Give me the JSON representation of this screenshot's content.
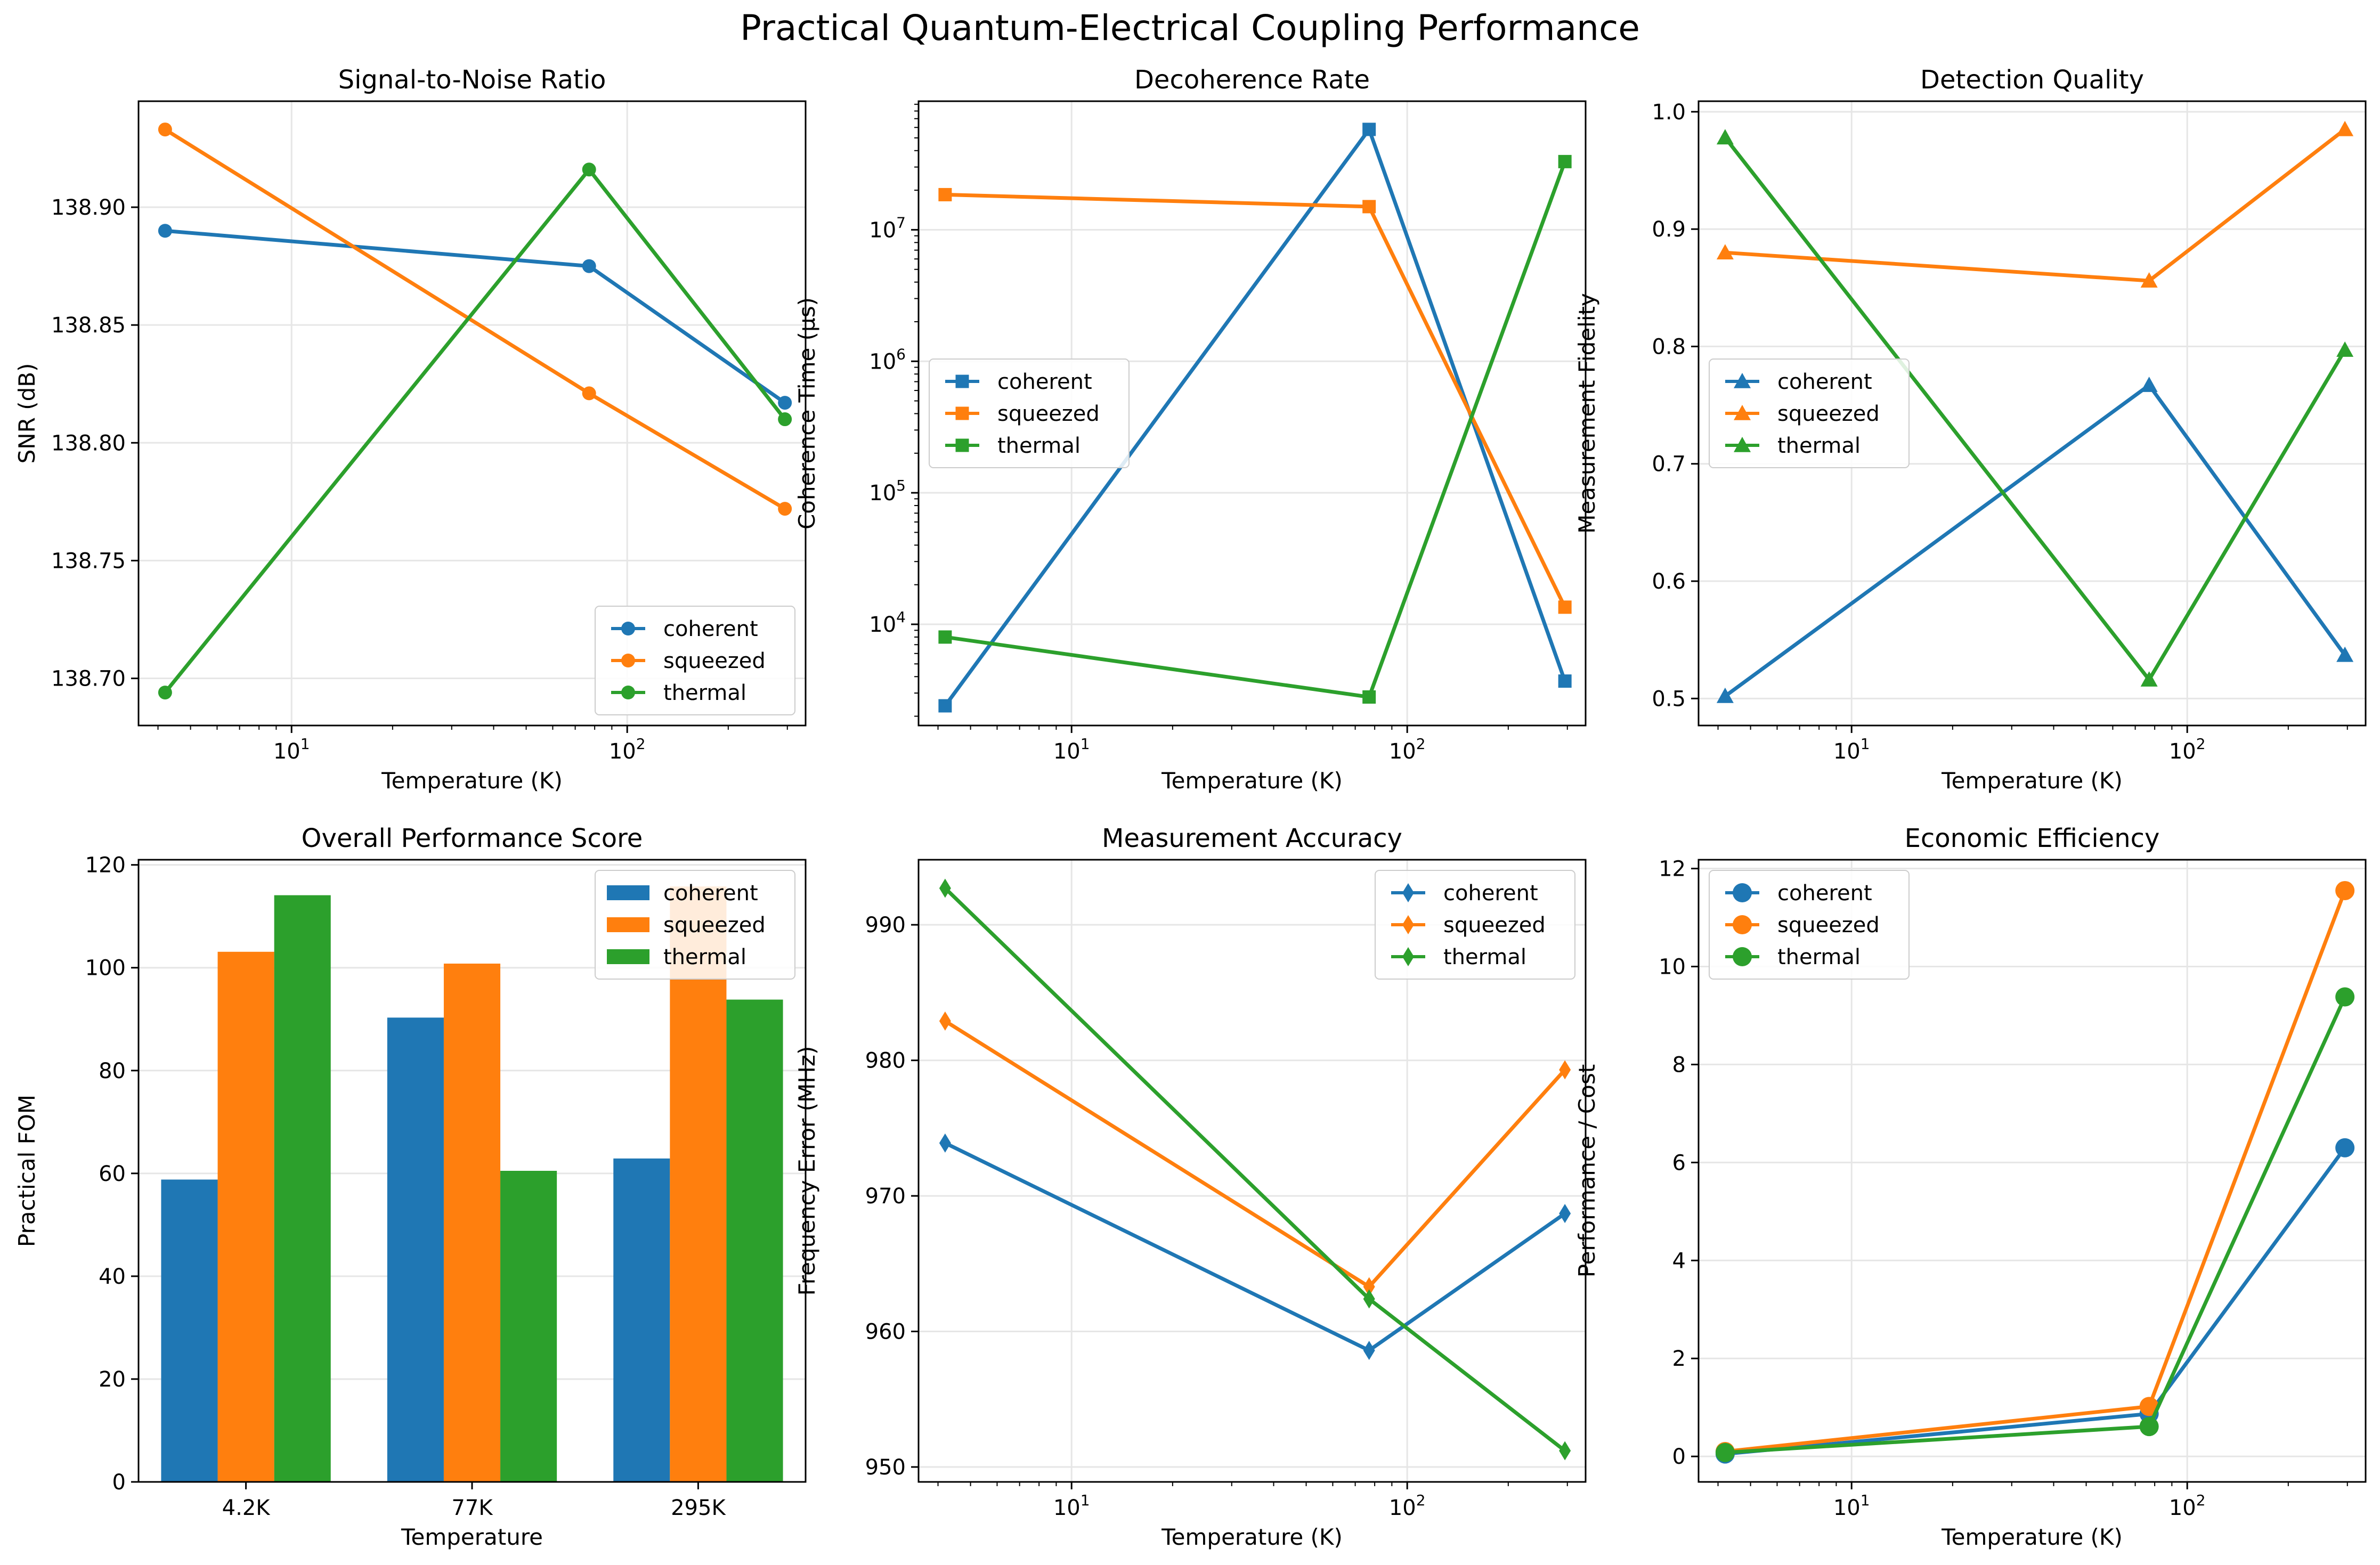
{
  "figure": {
    "title": "Practical Quantum-Electrical Coupling Performance"
  },
  "colors": {
    "coherent": "#1f77b4",
    "squeezed": "#ff7f0e",
    "thermal": "#2ca02c",
    "grid": "#e6e6e6",
    "axis": "#000000"
  },
  "chart_data": [
    {
      "type": "line",
      "title": "Signal-to-Noise Ratio",
      "xlabel": "Temperature (K)",
      "ylabel": "SNR (dB)",
      "xscale": "log",
      "xlim": [
        3.5,
        340
      ],
      "xticks": [
        10,
        100
      ],
      "xtick_labels": [
        "10^1",
        "10^2"
      ],
      "ylim": [
        138.68,
        138.945
      ],
      "yticks": [
        138.7,
        138.75,
        138.8,
        138.85,
        138.9
      ],
      "ytick_labels": [
        "138.70",
        "138.75",
        "138.80",
        "138.85",
        "138.90"
      ],
      "marker": "circle",
      "grid": true,
      "legend": "lower right",
      "x": [
        4.2,
        77,
        295
      ],
      "series": [
        {
          "name": "coherent",
          "values": [
            138.89,
            138.875,
            138.817
          ]
        },
        {
          "name": "squeezed",
          "values": [
            138.933,
            138.821,
            138.772
          ]
        },
        {
          "name": "thermal",
          "values": [
            138.694,
            138.916,
            138.81
          ]
        }
      ]
    },
    {
      "type": "line",
      "title": "Decoherence Rate",
      "xlabel": "Temperature (K)",
      "ylabel": "Coherence Time (μs)",
      "xscale": "log",
      "xlim": [
        3.5,
        340
      ],
      "xticks": [
        10,
        100
      ],
      "xtick_labels": [
        "10^1",
        "10^2"
      ],
      "yscale": "log",
      "ylim": [
        1700,
        95000000
      ],
      "yticks": [
        10000,
        100000,
        1000000,
        10000000
      ],
      "ytick_labels": [
        "10^4",
        "10^5",
        "10^6",
        "10^7"
      ],
      "marker": "square",
      "grid": true,
      "legend": "center left",
      "x": [
        4.2,
        77,
        295
      ],
      "series": [
        {
          "name": "coherent",
          "values": [
            2400,
            58000000,
            3700
          ]
        },
        {
          "name": "squeezed",
          "values": [
            18500000,
            15000000,
            13500
          ]
        },
        {
          "name": "thermal",
          "values": [
            8000,
            2800,
            33000000
          ]
        }
      ]
    },
    {
      "type": "line",
      "title": "Detection Quality",
      "xlabel": "Temperature (K)",
      "ylabel": "Measurement Fidelity",
      "xscale": "log",
      "xlim": [
        3.5,
        340
      ],
      "xticks": [
        10,
        100
      ],
      "xtick_labels": [
        "10^1",
        "10^2"
      ],
      "ylim": [
        0.477,
        1.009
      ],
      "yticks": [
        0.5,
        0.6,
        0.7,
        0.8,
        0.9,
        1.0
      ],
      "ytick_labels": [
        "0.5",
        "0.6",
        "0.7",
        "0.8",
        "0.9",
        "1.0"
      ],
      "marker": "triangle",
      "grid": true,
      "legend": "center left",
      "x": [
        4.2,
        77,
        295
      ],
      "series": [
        {
          "name": "coherent",
          "values": [
            0.502,
            0.767,
            0.537
          ]
        },
        {
          "name": "squeezed",
          "values": [
            0.88,
            0.856,
            0.985
          ]
        },
        {
          "name": "thermal",
          "values": [
            0.978,
            0.516,
            0.797
          ]
        }
      ]
    },
    {
      "type": "bar",
      "title": "Overall Performance Score",
      "xlabel": "Temperature",
      "ylabel": "Practical FOM",
      "categories": [
        "4.2K",
        "77K",
        "295K"
      ],
      "ylim": [
        0,
        121
      ],
      "yticks": [
        0,
        20,
        40,
        60,
        80,
        100,
        120
      ],
      "ytick_labels": [
        "0",
        "20",
        "40",
        "60",
        "80",
        "100",
        "120"
      ],
      "grid": true,
      "legend": "upper right",
      "series": [
        {
          "name": "coherent",
          "values": [
            58.8,
            90.3,
            62.9
          ]
        },
        {
          "name": "squeezed",
          "values": [
            103.1,
            100.8,
            115.8
          ]
        },
        {
          "name": "thermal",
          "values": [
            114.1,
            60.5,
            93.8
          ]
        }
      ]
    },
    {
      "type": "line",
      "title": "Measurement Accuracy",
      "xlabel": "Temperature (K)",
      "ylabel": "Frequency Error (MHz)",
      "xscale": "log",
      "xlim": [
        3.5,
        340
      ],
      "xticks": [
        10,
        100
      ],
      "xtick_labels": [
        "10^1",
        "10^2"
      ],
      "ylim": [
        948.9,
        994.8
      ],
      "yticks": [
        950,
        960,
        970,
        980,
        990
      ],
      "ytick_labels": [
        "950",
        "960",
        "970",
        "980",
        "990"
      ],
      "marker": "diamond",
      "grid": true,
      "legend": "upper right",
      "x": [
        4.2,
        77,
        295
      ],
      "series": [
        {
          "name": "coherent",
          "values": [
            973.9,
            958.6,
            968.7
          ]
        },
        {
          "name": "squeezed",
          "values": [
            982.9,
            963.3,
            979.3
          ]
        },
        {
          "name": "thermal",
          "values": [
            992.7,
            962.4,
            951.2
          ]
        }
      ]
    },
    {
      "type": "line",
      "title": "Economic Efficiency",
      "xlabel": "Temperature (K)",
      "ylabel": "Performance / Cost",
      "xscale": "log",
      "xlim": [
        3.5,
        340
      ],
      "xticks": [
        10,
        100
      ],
      "xtick_labels": [
        "10^1",
        "10^2"
      ],
      "ylim": [
        -0.52,
        12.18
      ],
      "yticks": [
        0,
        2,
        4,
        6,
        8,
        10,
        12
      ],
      "ytick_labels": [
        "0",
        "2",
        "4",
        "6",
        "8",
        "10",
        "12"
      ],
      "marker": "circle-large",
      "grid": true,
      "legend": "upper left",
      "x": [
        4.2,
        77,
        295
      ],
      "series": [
        {
          "name": "coherent",
          "values": [
            0.05,
            0.87,
            6.3
          ]
        },
        {
          "name": "squeezed",
          "values": [
            0.1,
            1.02,
            11.55
          ]
        },
        {
          "name": "thermal",
          "values": [
            0.08,
            0.61,
            9.38
          ]
        }
      ]
    }
  ]
}
